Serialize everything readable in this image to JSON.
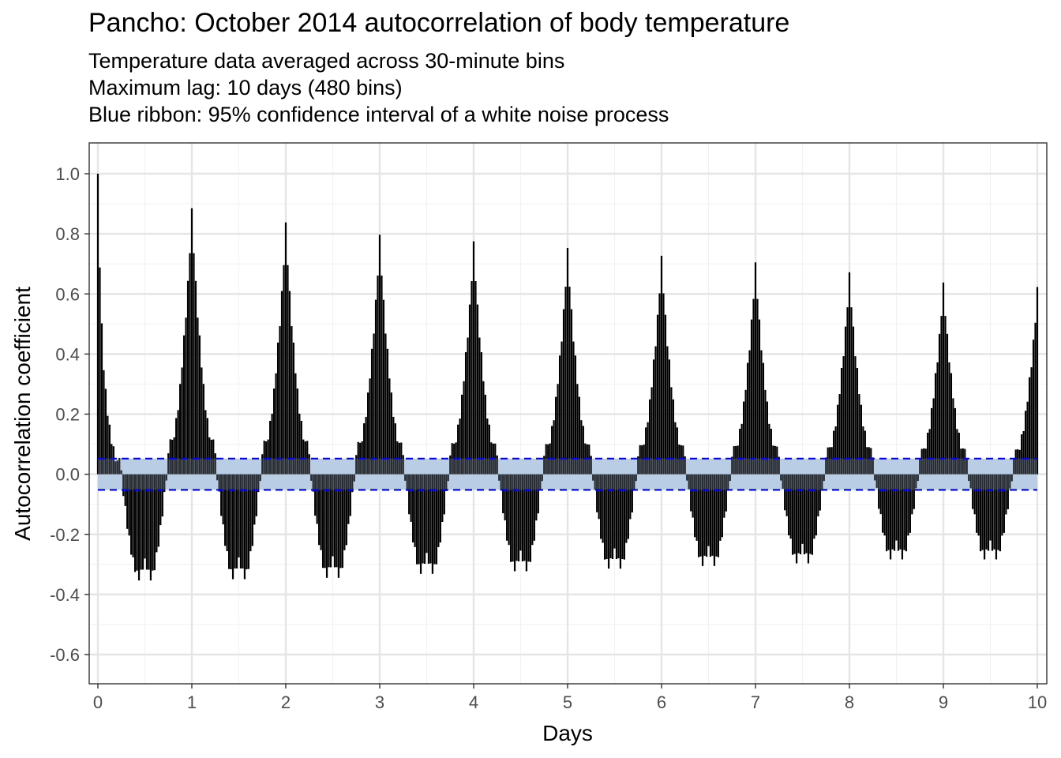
{
  "chart_data": {
    "type": "bar",
    "title": "Pancho: October 2014 autocorrelation of body temperature",
    "subtitle_lines": [
      "Temperature data averaged across 30-minute bins",
      "Maximum lag: 10 days (480 bins)",
      "Blue ribbon: 95% confidence interval of a white noise process"
    ],
    "xlabel": "Days",
    "ylabel": "Autocorrelation coefficient",
    "xlim": [
      0,
      10
    ],
    "ylim": [
      -0.7,
      1.1
    ],
    "x_ticks": [
      0,
      1,
      2,
      3,
      4,
      5,
      6,
      7,
      8,
      9,
      10
    ],
    "x_tick_labels": [
      "0",
      "1",
      "2",
      "3",
      "4",
      "5",
      "6",
      "7",
      "8",
      "9",
      "10"
    ],
    "y_ticks": [
      -0.6,
      -0.4,
      -0.2,
      0.0,
      0.2,
      0.4,
      0.6,
      0.8,
      1.0
    ],
    "y_tick_labels": [
      "-0.6",
      "-0.4",
      "-0.2",
      "0.0",
      "0.2",
      "0.4",
      "0.6",
      "0.8",
      "1.0"
    ],
    "bins_per_day": 48,
    "max_lag_bins": 480,
    "confidence_interval": {
      "lower": -0.052,
      "upper": 0.052
    },
    "daily_peak_values": [
      1.0,
      0.885,
      0.838,
      0.797,
      0.775,
      0.753,
      0.727,
      0.705,
      0.672,
      0.638,
      0.611
    ],
    "daily_trough_values": [
      -0.39,
      -0.385,
      -0.38,
      -0.365,
      -0.355,
      -0.345,
      -0.335,
      -0.325,
      -0.31,
      -0.31
    ],
    "grid": true,
    "colors": {
      "bars": "#000000",
      "ribbon": "#b9cde4",
      "ci_lines": "#0000ff",
      "grid": "#e5e5e5",
      "panel_border": "#333333"
    }
  }
}
